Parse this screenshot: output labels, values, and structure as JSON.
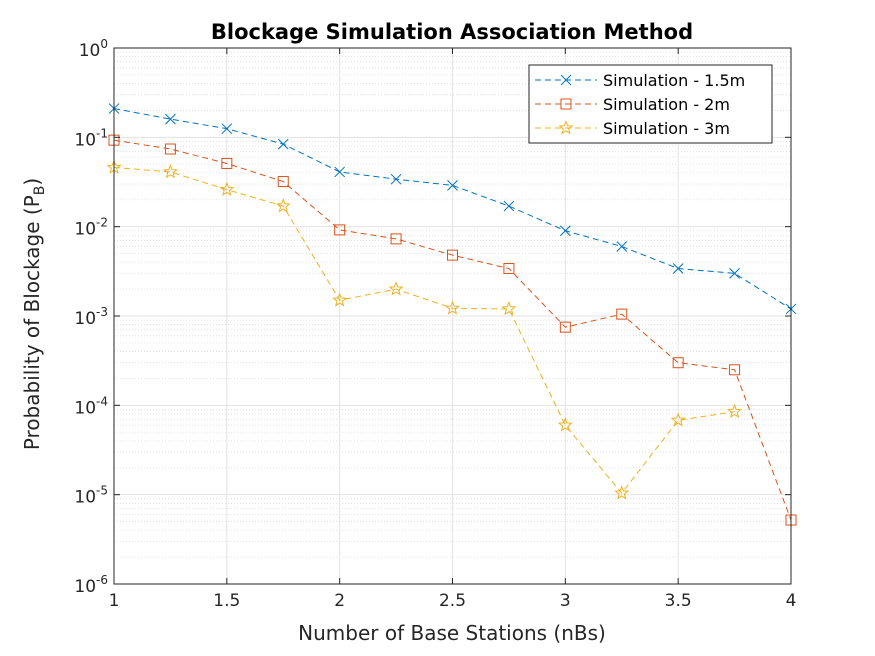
{
  "chart_data": {
    "type": "line",
    "title": "Blockage Simulation Association Method",
    "xlabel": "Number of Base Stations (nBs)",
    "ylabel_main": "Probability of Blockage (P",
    "ylabel_sub": "B",
    "ylabel_close": ")",
    "xlim": [
      1,
      4
    ],
    "ylim_exponents": [
      -6,
      0
    ],
    "yscale": "log",
    "grid": true,
    "minor_grid": true,
    "legend_position": "top-right",
    "x_ticks": [
      "1",
      "1.5",
      "2",
      "2.5",
      "3",
      "3.5",
      "4"
    ],
    "y_ticks": [
      {
        "base": "10",
        "exp": "-6"
      },
      {
        "base": "10",
        "exp": "-5"
      },
      {
        "base": "10",
        "exp": "-4"
      },
      {
        "base": "10",
        "exp": "-3"
      },
      {
        "base": "10",
        "exp": "-2"
      },
      {
        "base": "10",
        "exp": "-1"
      },
      {
        "base": "10",
        "exp": "0"
      }
    ],
    "x": [
      1,
      1.25,
      1.5,
      1.75,
      2,
      2.25,
      2.5,
      2.75,
      3,
      3.25,
      3.5,
      3.75,
      4
    ],
    "series": [
      {
        "name": "Simulation - 1.5m",
        "color": "#0072BD",
        "marker": "x",
        "values": [
          0.21,
          0.16,
          0.125,
          0.084,
          0.041,
          0.034,
          0.029,
          0.017,
          0.009,
          0.006,
          0.0034,
          0.003,
          0.0012
        ]
      },
      {
        "name": "Simulation - 2m",
        "color": "#D95319",
        "marker": "square",
        "values": [
          0.093,
          0.074,
          0.051,
          0.032,
          0.0092,
          0.0073,
          0.0048,
          0.0034,
          0.00075,
          0.00105,
          0.0003,
          0.00025,
          5.2e-06
        ]
      },
      {
        "name": "Simulation - 3m",
        "color": "#EDB120",
        "marker": "star",
        "values": [
          0.046,
          0.041,
          0.026,
          0.017,
          0.0015,
          0.002,
          0.00122,
          0.0012,
          6e-05,
          1.04e-05,
          6.8e-05,
          8.5e-05,
          null
        ]
      }
    ]
  }
}
